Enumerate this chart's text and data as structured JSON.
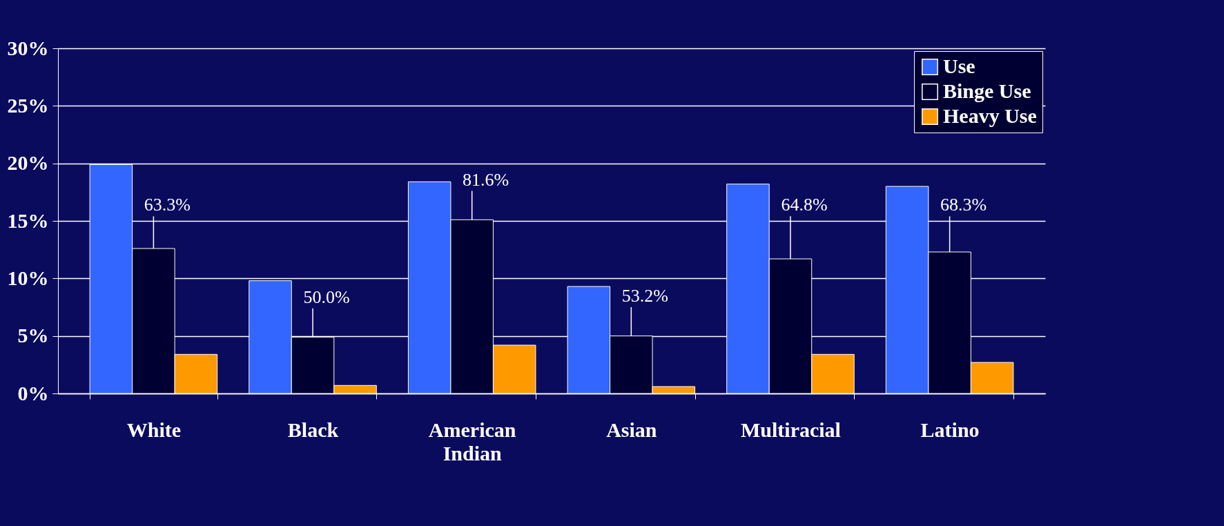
{
  "chart_data": {
    "type": "bar",
    "categories": [
      "White",
      "Black",
      "American Indian",
      "Asian",
      "Multiracial",
      "Latino"
    ],
    "series": [
      {
        "name": "Use",
        "color": "#3366ff",
        "values": [
          19.9,
          9.8,
          18.4,
          9.3,
          18.2,
          18.0
        ]
      },
      {
        "name": "Binge Use",
        "color": "#000033",
        "values": [
          12.6,
          4.9,
          15.1,
          5.0,
          11.7,
          12.3
        ]
      },
      {
        "name": "Heavy Use",
        "color": "#ff9900",
        "values": [
          3.4,
          0.7,
          4.2,
          0.6,
          3.4,
          2.7
        ]
      }
    ],
    "ylim": [
      0,
      30
    ],
    "yticks": [
      {
        "value": 0,
        "label": "0%"
      },
      {
        "value": 5,
        "label": "5%"
      },
      {
        "value": 10,
        "label": "10%"
      },
      {
        "value": 15,
        "label": "15%"
      },
      {
        "value": 20,
        "label": "20%"
      },
      {
        "value": 25,
        "label": "25%"
      },
      {
        "value": 30,
        "label": "30%"
      }
    ],
    "grid": "y",
    "legend": "top right",
    "annotations": [
      {
        "text": "63.3%",
        "x": "White",
        "y": 12.6
      },
      {
        "text": "50.0%",
        "x": "Black",
        "y": 4.9
      },
      {
        "text": "81.6%",
        "x": "American Indian",
        "y": 15.1
      },
      {
        "text": "53.2%",
        "x": "Asian",
        "y": 5.0
      },
      {
        "text": "64.8%",
        "x": "Multiracial",
        "y": 11.7
      },
      {
        "text": "68.3%",
        "x": "Latino",
        "y": 12.3
      }
    ]
  }
}
